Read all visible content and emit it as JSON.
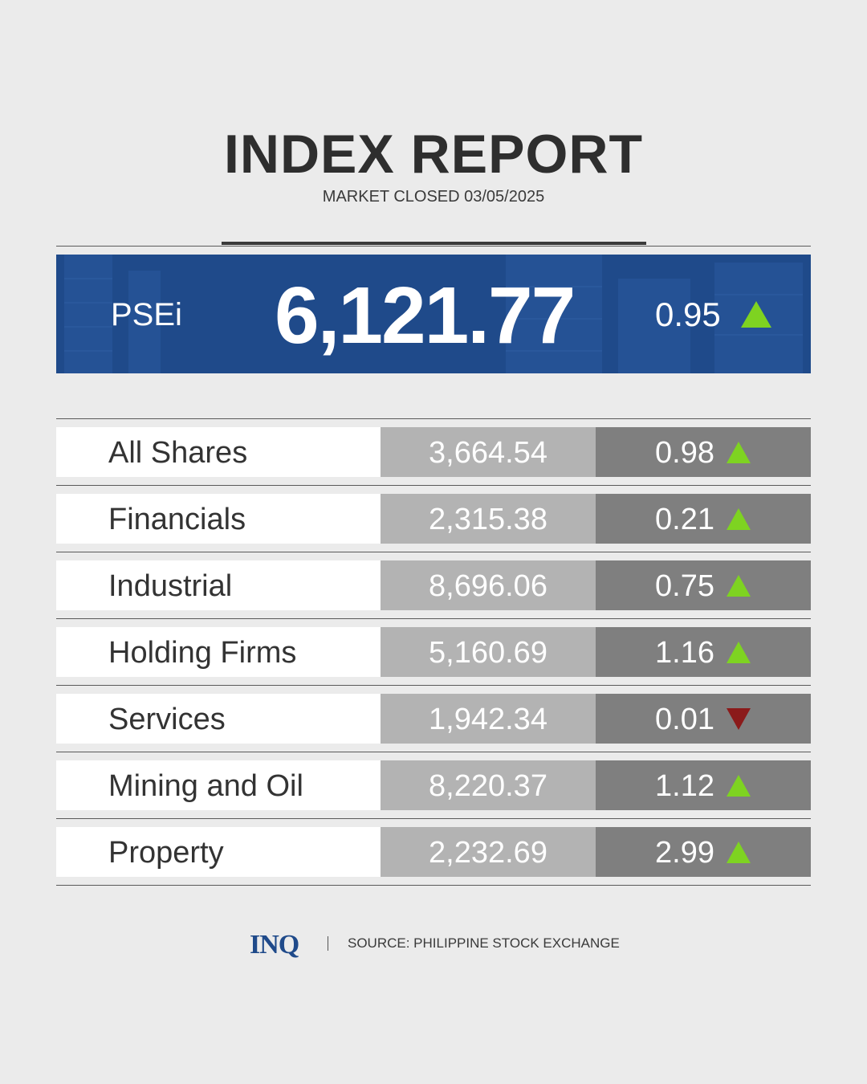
{
  "header": {
    "title": "INDEX REPORT",
    "subtitle": "MARKET CLOSED 03/05/2025"
  },
  "main_index": {
    "name": "PSEi",
    "value": "6,121.77",
    "change": "0.95",
    "direction": "up"
  },
  "sectors": [
    {
      "name": "All Shares",
      "value": "3,664.54",
      "change": "0.98",
      "direction": "up"
    },
    {
      "name": "Financials",
      "value": "2,315.38",
      "change": "0.21",
      "direction": "up"
    },
    {
      "name": "Industrial",
      "value": "8,696.06",
      "change": "0.75",
      "direction": "up"
    },
    {
      "name": "Holding Firms",
      "value": "5,160.69",
      "change": "1.16",
      "direction": "up"
    },
    {
      "name": "Services",
      "value": "1,942.34",
      "change": "0.01",
      "direction": "down"
    },
    {
      "name": "Mining and Oil",
      "value": "8,220.37",
      "change": "1.12",
      "direction": "up"
    },
    {
      "name": "Property",
      "value": "2,232.69",
      "change": "2.99",
      "direction": "up"
    }
  ],
  "footer": {
    "logo": "INQ",
    "source": "SOURCE: PHILIPPINE STOCK EXCHANGE"
  },
  "colors": {
    "up_arrow": "#7ed321",
    "down_arrow": "#8b1a1a",
    "banner": "#1f4a8a"
  },
  "icons": {
    "up": "triangle-up-icon",
    "down": "triangle-down-icon"
  }
}
